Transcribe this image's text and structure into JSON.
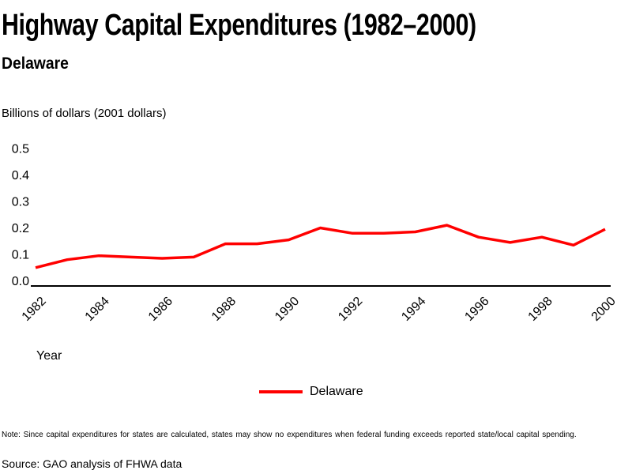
{
  "header": {
    "title": "Highway Capital Expenditures (1982–2000)",
    "subtitle": "Delaware"
  },
  "axes": {
    "y_unit_label": "Billions of dollars (2001 dollars)",
    "x_title": "Year"
  },
  "legend": {
    "label": "Delaware"
  },
  "footnotes": {
    "note": "Note: Since capital expenditures for states are calculated, states may show no expenditures when federal funding exceeds reported state/local capital spending.",
    "source": "Source: GAO analysis of FHWA data"
  },
  "chart_data": {
    "type": "line",
    "title": "Highway Capital Expenditures (1982–2000)",
    "subtitle": "Delaware",
    "xlabel": "Year",
    "ylabel": "Billions of dollars (2001 dollars)",
    "x": [
      1982,
      1983,
      1984,
      1985,
      1986,
      1987,
      1988,
      1989,
      1990,
      1991,
      1992,
      1993,
      1994,
      1995,
      1996,
      1997,
      1998,
      1999,
      2000
    ],
    "series": [
      {
        "name": "Delaware",
        "color": "#ff0000",
        "values": [
          0.05,
          0.08,
          0.095,
          0.09,
          0.085,
          0.09,
          0.14,
          0.14,
          0.155,
          0.2,
          0.18,
          0.18,
          0.185,
          0.21,
          0.165,
          0.145,
          0.165,
          0.135,
          0.195
        ]
      }
    ],
    "ylim": [
      0.0,
      0.5
    ],
    "y_ticks": [
      "0.0",
      "0.1",
      "0.2",
      "0.3",
      "0.4",
      "0.5"
    ],
    "x_ticks": [
      1982,
      1984,
      1986,
      1988,
      1990,
      1992,
      1994,
      1996,
      1998,
      2000
    ],
    "grid": false,
    "axis_color": "#000000",
    "legend_position": "bottom-center"
  }
}
